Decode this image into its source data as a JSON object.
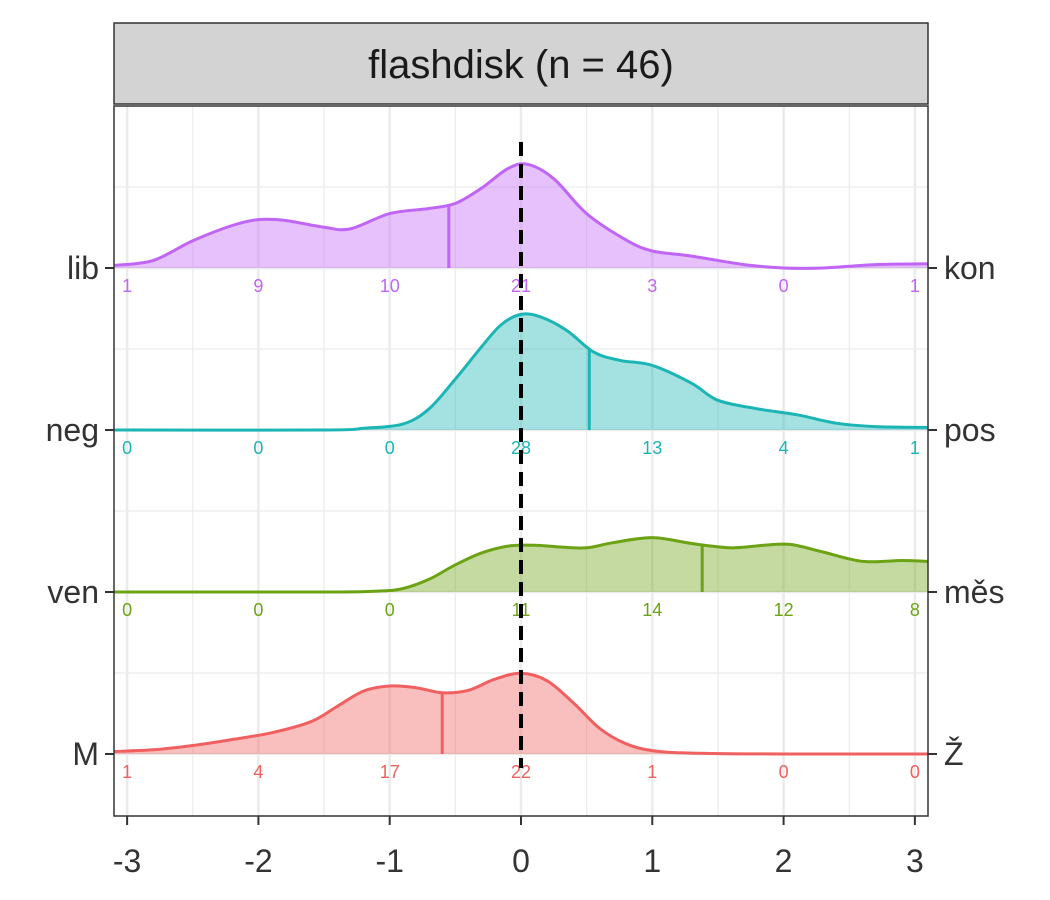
{
  "chart_data": {
    "type": "ridgeline",
    "title": "flashdisk (n = 46)",
    "xlim": [
      -3.1,
      3.1
    ],
    "x_ticks": [
      -3,
      -2,
      -1,
      0,
      1,
      2,
      3
    ],
    "x_tick_labels": [
      "-3",
      "-2",
      "-1",
      "0",
      "1",
      "2",
      "3"
    ],
    "reference_line_x": 0,
    "grid": true,
    "rows": [
      {
        "left_label": "lib",
        "right_label": "kon",
        "color": "#c065f5",
        "median": -0.55,
        "counts": [
          1,
          9,
          10,
          21,
          3,
          0,
          1
        ],
        "density": [
          [
            -3.1,
            0.03
          ],
          [
            -2.8,
            0.09
          ],
          [
            -2.5,
            0.32
          ],
          [
            -2.2,
            0.5
          ],
          [
            -2.0,
            0.57
          ],
          [
            -1.8,
            0.56
          ],
          [
            -1.5,
            0.48
          ],
          [
            -1.3,
            0.46
          ],
          [
            -1.0,
            0.64
          ],
          [
            -0.7,
            0.7
          ],
          [
            -0.5,
            0.76
          ],
          [
            -0.3,
            0.94
          ],
          [
            -0.1,
            1.17
          ],
          [
            0.05,
            1.22
          ],
          [
            0.25,
            1.05
          ],
          [
            0.5,
            0.64
          ],
          [
            0.8,
            0.33
          ],
          [
            1.0,
            0.2
          ],
          [
            1.3,
            0.14
          ],
          [
            1.7,
            0.04
          ],
          [
            2.0,
            0.0
          ],
          [
            2.3,
            0.0
          ],
          [
            2.7,
            0.04
          ],
          [
            3.1,
            0.05
          ]
        ]
      },
      {
        "left_label": "neg",
        "right_label": "pos",
        "color": "#1cb5b5",
        "median": 0.52,
        "counts": [
          0,
          0,
          0,
          28,
          13,
          4,
          1
        ],
        "density": [
          [
            -3.1,
            0.0
          ],
          [
            -1.5,
            0.0
          ],
          [
            -1.2,
            0.02
          ],
          [
            -0.9,
            0.07
          ],
          [
            -0.7,
            0.25
          ],
          [
            -0.5,
            0.6
          ],
          [
            -0.3,
            0.98
          ],
          [
            -0.15,
            1.24
          ],
          [
            0.0,
            1.36
          ],
          [
            0.15,
            1.33
          ],
          [
            0.35,
            1.17
          ],
          [
            0.55,
            0.92
          ],
          [
            0.75,
            0.82
          ],
          [
            1.0,
            0.76
          ],
          [
            1.3,
            0.55
          ],
          [
            1.5,
            0.35
          ],
          [
            1.8,
            0.25
          ],
          [
            2.1,
            0.18
          ],
          [
            2.4,
            0.08
          ],
          [
            2.7,
            0.04
          ],
          [
            3.1,
            0.03
          ]
        ]
      },
      {
        "left_label": "ven",
        "right_label": "měs",
        "color": "#6ba314",
        "median": 1.38,
        "counts": [
          0,
          0,
          0,
          11,
          14,
          12,
          8
        ],
        "density": [
          [
            -3.1,
            0.0
          ],
          [
            -1.5,
            0.0
          ],
          [
            -1.1,
            0.01
          ],
          [
            -0.9,
            0.04
          ],
          [
            -0.7,
            0.15
          ],
          [
            -0.5,
            0.32
          ],
          [
            -0.3,
            0.46
          ],
          [
            -0.1,
            0.54
          ],
          [
            0.1,
            0.55
          ],
          [
            0.3,
            0.53
          ],
          [
            0.5,
            0.52
          ],
          [
            0.7,
            0.58
          ],
          [
            1.0,
            0.64
          ],
          [
            1.3,
            0.57
          ],
          [
            1.6,
            0.52
          ],
          [
            1.85,
            0.55
          ],
          [
            2.05,
            0.56
          ],
          [
            2.3,
            0.47
          ],
          [
            2.6,
            0.36
          ],
          [
            2.9,
            0.37
          ],
          [
            3.1,
            0.36
          ]
        ]
      },
      {
        "left_label": "M",
        "right_label": "Ž",
        "color": "#f06060",
        "median": -0.6,
        "counts": [
          1,
          4,
          17,
          22,
          1,
          0,
          0
        ],
        "density": [
          [
            -3.1,
            0.03
          ],
          [
            -2.8,
            0.05
          ],
          [
            -2.5,
            0.1
          ],
          [
            -2.2,
            0.17
          ],
          [
            -1.9,
            0.25
          ],
          [
            -1.6,
            0.38
          ],
          [
            -1.4,
            0.56
          ],
          [
            -1.2,
            0.74
          ],
          [
            -1.0,
            0.8
          ],
          [
            -0.8,
            0.78
          ],
          [
            -0.6,
            0.72
          ],
          [
            -0.4,
            0.75
          ],
          [
            -0.2,
            0.88
          ],
          [
            0.0,
            0.95
          ],
          [
            0.2,
            0.86
          ],
          [
            0.4,
            0.6
          ],
          [
            0.6,
            0.3
          ],
          [
            0.8,
            0.12
          ],
          [
            1.0,
            0.04
          ],
          [
            1.3,
            0.01
          ],
          [
            2.0,
            0.0
          ],
          [
            3.1,
            0.0
          ]
        ]
      }
    ]
  }
}
